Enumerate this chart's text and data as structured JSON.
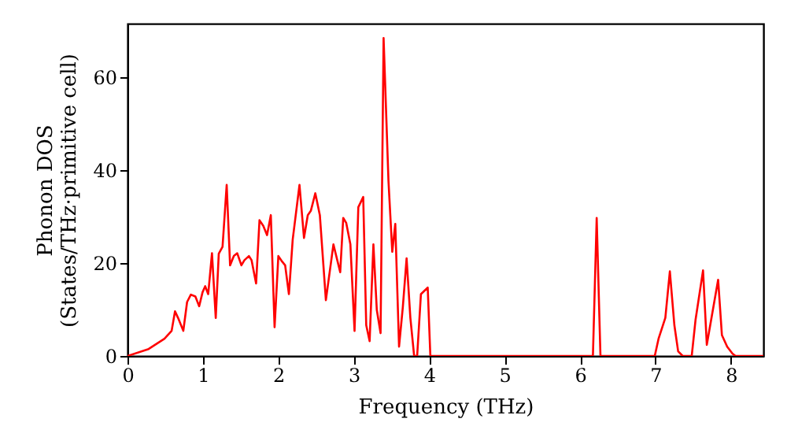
{
  "chart_data": {
    "type": "line",
    "xlabel": "Frequency (THz)",
    "ylabel": "Phonon DOS\n(States/THz·primitive cell)",
    "xlim": [
      0,
      8.43
    ],
    "ylim": [
      0,
      71.5
    ],
    "xticks": [
      0,
      1,
      2,
      3,
      4,
      5,
      6,
      7,
      8
    ],
    "yticks": [
      0,
      20,
      40,
      60
    ],
    "grid": false,
    "line_style": "solid",
    "series": [
      {
        "color": "#ff0000",
        "x": [
          0,
          0.28,
          0.49,
          0.585,
          0.63,
          0.67,
          0.74,
          0.79,
          0.84,
          0.9,
          0.95,
          0.995,
          1.03,
          1.07,
          1.12,
          1.17,
          1.21,
          1.26,
          1.315,
          1.36,
          1.41,
          1.455,
          1.51,
          1.55,
          1.61,
          1.645,
          1.705,
          1.75,
          1.8,
          1.85,
          1.9,
          1.95,
          2.0,
          2.05,
          2.09,
          2.14,
          2.19,
          2.28,
          2.34,
          2.39,
          2.43,
          2.49,
          2.55,
          2.63,
          2.73,
          2.82,
          2.86,
          2.9,
          2.955,
          3.01,
          3.06,
          3.125,
          3.165,
          3.21,
          3.26,
          3.305,
          3.355,
          3.395,
          3.46,
          3.51,
          3.55,
          3.6,
          3.65,
          3.7,
          3.75,
          3.8,
          3.84,
          3.89,
          3.98,
          4.015,
          6.17,
          6.22,
          6.27,
          6.99,
          7.04,
          7.13,
          7.19,
          7.25,
          7.3,
          7.36,
          7.48,
          7.53,
          7.63,
          7.68,
          7.83,
          7.88,
          7.95,
          8.02,
          8.06,
          8.43
        ],
        "values": [
          0,
          1.5,
          3.7,
          5.4,
          9.6,
          8.2,
          5.4,
          11.6,
          13.2,
          12.8,
          10.7,
          13.7,
          15,
          13.3,
          22.1,
          8.2,
          22,
          23.5,
          36.8,
          19.5,
          21.5,
          22.1,
          19.5,
          20.6,
          21.5,
          20.6,
          15.6,
          29.2,
          28,
          26,
          30.3,
          6.2,
          21.5,
          20.3,
          19.5,
          13.3,
          25,
          36.8,
          25.4,
          30.3,
          31.2,
          35,
          30.3,
          12,
          24,
          18,
          29.7,
          28.6,
          24,
          5.4,
          32,
          34.2,
          6.6,
          3.2,
          24,
          9.9,
          4.9,
          68.4,
          37.6,
          22.4,
          28.4,
          2,
          10.5,
          21,
          8.2,
          0,
          0,
          13.3,
          14.7,
          0,
          0,
          29.7,
          0,
          0,
          3.7,
          8.2,
          18.2,
          6.6,
          1,
          0,
          0,
          7.7,
          18.4,
          2.4,
          16.4,
          4.5,
          2,
          0.5,
          0,
          0
        ]
      }
    ]
  }
}
